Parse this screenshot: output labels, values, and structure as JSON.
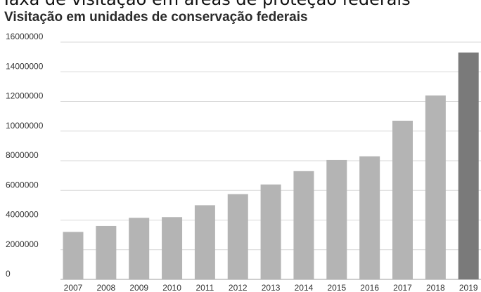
{
  "chart_data": {
    "type": "bar",
    "top_cut_text": "Taxa de visitação em áreas de proteção federais",
    "title": "Visitação em unidades de conservação federais",
    "categories": [
      "2007",
      "2008",
      "2009",
      "2010",
      "2011",
      "2012",
      "2013",
      "2014",
      "2015",
      "2016",
      "2017",
      "2018",
      "2019"
    ],
    "values": [
      3200000,
      3600000,
      4150000,
      4200000,
      5000000,
      5750000,
      6400000,
      7300000,
      8050000,
      8300000,
      10700000,
      12400000,
      15300000
    ],
    "yticks": [
      0,
      2000000,
      4000000,
      6000000,
      8000000,
      10000000,
      12000000,
      14000000,
      16000000
    ],
    "ytick_labels": [
      "0",
      "2000000",
      "4000000",
      "6000000",
      "8000000",
      "10000000",
      "12000000",
      "14000000",
      "16000000"
    ],
    "ylim": [
      0,
      16000000
    ],
    "grid": true,
    "colors": {
      "bar": "#b4b4b4",
      "highlight": "#7a7a7a",
      "highlight_index": 12
    }
  }
}
